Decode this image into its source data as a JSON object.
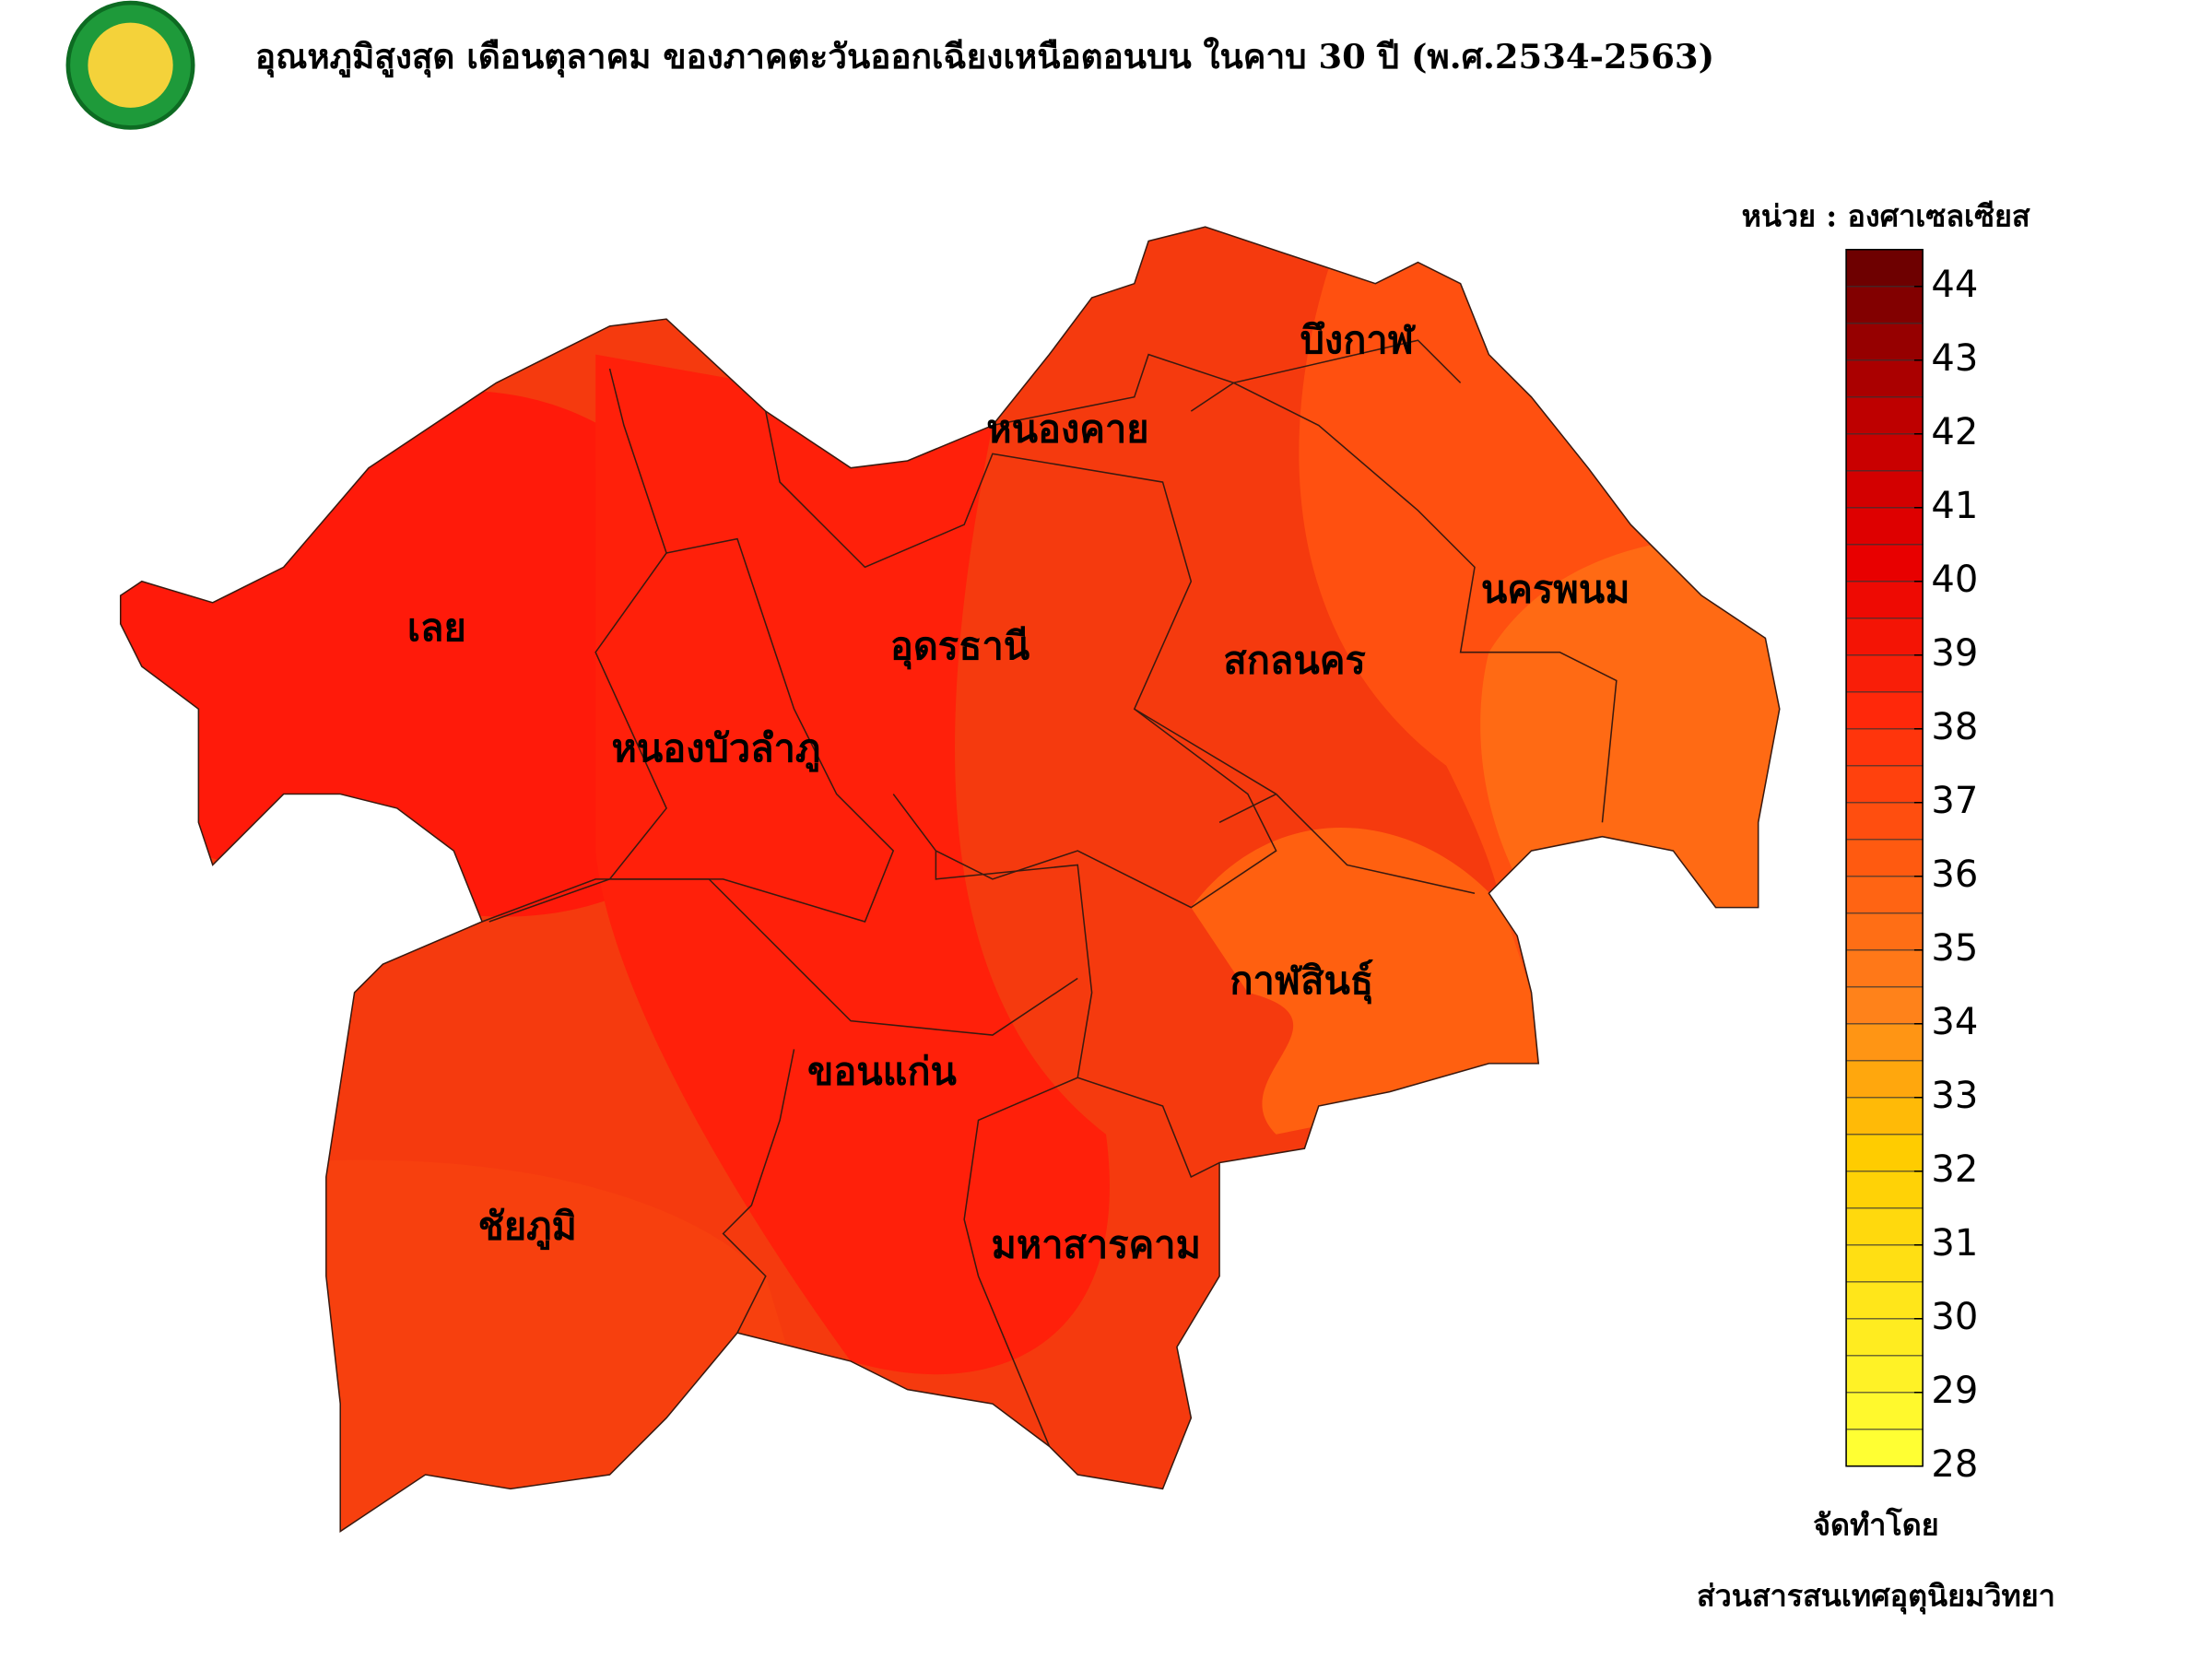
{
  "header": {
    "title": "อุณหภูมิสูงสุด เดือนตุลาคม ของภาคตะวันออกเฉียงเหนือตอนบน ในคาบ 30 ปี (พ.ศ.2534-2563)"
  },
  "map": {
    "provinces": [
      {
        "label": "เลย"
      },
      {
        "label": "หนองบัวลำภู"
      },
      {
        "label": "อุดรธานี"
      },
      {
        "label": "หนองคาย"
      },
      {
        "label": "บึงกาฬ"
      },
      {
        "label": "สกลนคร"
      },
      {
        "label": "นครพนม"
      },
      {
        "label": "กาฬสินธุ์"
      },
      {
        "label": "ขอนแก่น"
      },
      {
        "label": "ชัยภูมิ"
      },
      {
        "label": "มหาสารคาม"
      }
    ]
  },
  "legend": {
    "unit": "หน่วย : องศาเซลเซียส",
    "ticks": [
      44,
      43,
      42,
      41,
      40,
      39,
      38,
      37,
      36,
      35,
      34,
      33,
      32,
      31,
      30,
      29,
      28
    ]
  },
  "footer": {
    "credit_label": "จัดทำโดย",
    "credit": "ส่วนสารสนเทศอุตุนิยมวิทยา"
  }
}
